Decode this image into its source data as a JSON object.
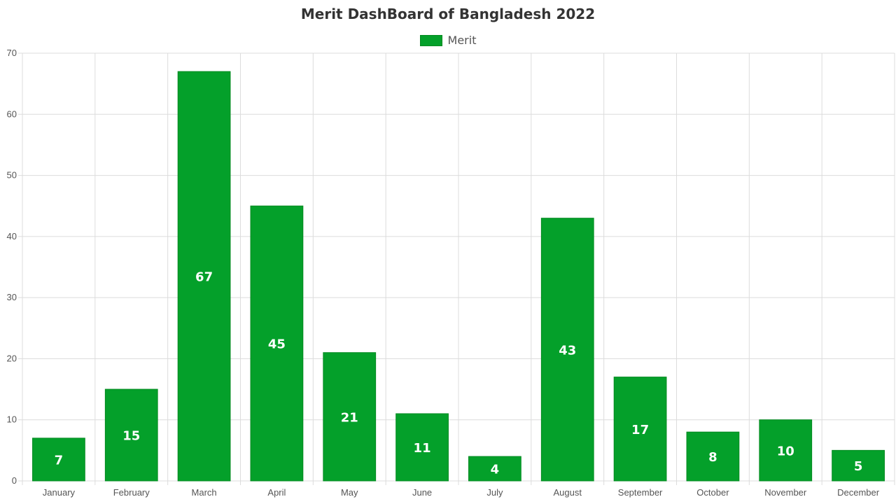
{
  "chart_data": {
    "type": "bar",
    "title": "Merit DashBoard of Bangladesh 2022",
    "legend_position": "top-center",
    "grid": true,
    "categories": [
      "January",
      "February",
      "March",
      "April",
      "May",
      "June",
      "July",
      "August",
      "September",
      "October",
      "November",
      "December"
    ],
    "series": [
      {
        "name": "Merit",
        "values": [
          7,
          15,
          67,
          45,
          21,
          11,
          4,
          43,
          17,
          8,
          10,
          5
        ],
        "color": "#04a02a",
        "border_color": "#038a20"
      }
    ],
    "ylim": [
      0,
      70
    ],
    "yticks": [
      0,
      10,
      20,
      30,
      40,
      50,
      60,
      70
    ],
    "data_labels": true
  }
}
